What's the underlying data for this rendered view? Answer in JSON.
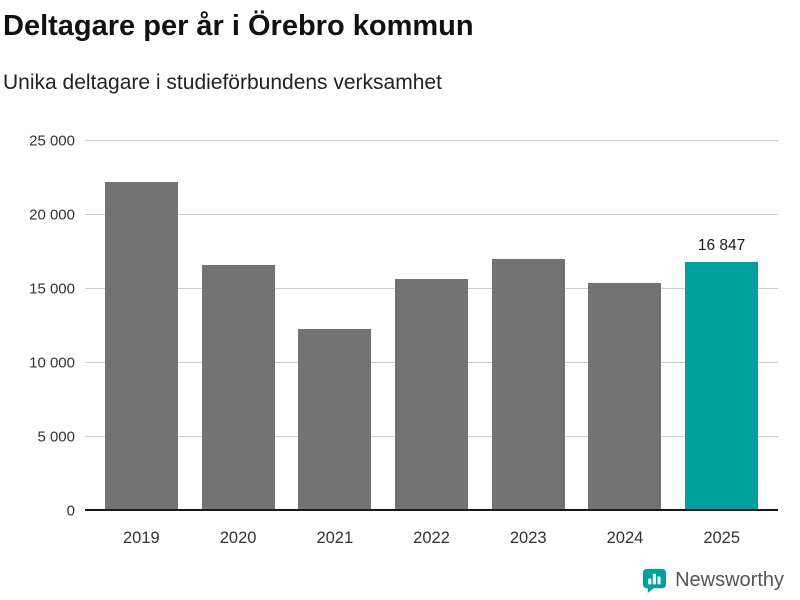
{
  "header": {
    "title": "Deltagare per år i Örebro kommun",
    "subtitle": "Unika deltagare i studieförbundens verksamhet"
  },
  "chart_data": {
    "type": "bar",
    "title": "Deltagare per år i Örebro kommun",
    "subtitle": "Unika deltagare i studieförbundens verksamhet",
    "categories": [
      "2019",
      "2020",
      "2021",
      "2022",
      "2023",
      "2024",
      "2025"
    ],
    "values": [
      22200,
      16600,
      12300,
      15700,
      17000,
      15400,
      16847
    ],
    "highlight_index": 6,
    "highlight_label": "16 847",
    "bar_color": "#737373",
    "highlight_color": "#00a09c",
    "ylim": [
      0,
      25000
    ],
    "yticks": [
      0,
      5000,
      10000,
      15000,
      20000,
      25000
    ],
    "ytick_labels": [
      "0",
      "5 000",
      "10 000",
      "15 000",
      "20 000",
      "25 000"
    ],
    "grid": true,
    "legend": "none",
    "xlabel": "",
    "ylabel": ""
  },
  "footer": {
    "brand": "Newsworthy",
    "brand_color": "#00a09c"
  }
}
